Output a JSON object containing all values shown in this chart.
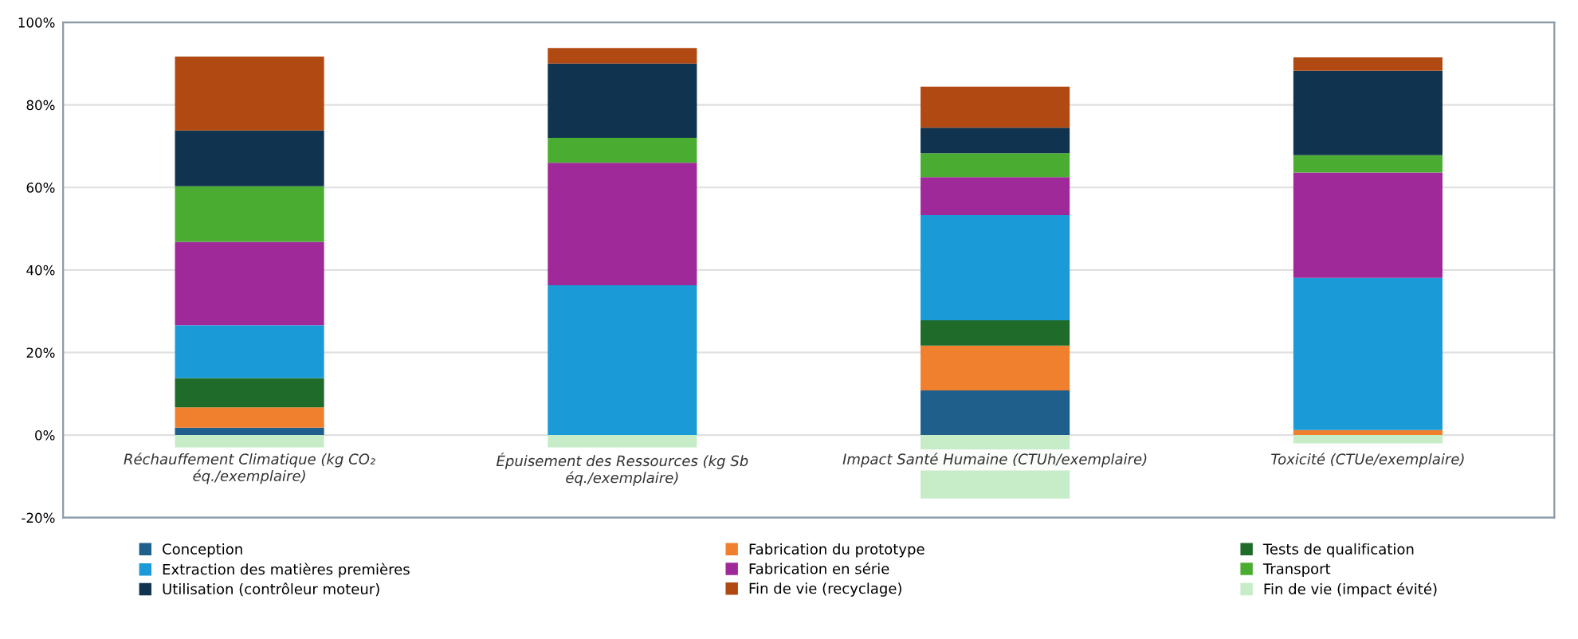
{
  "chart_data": {
    "type": "bar",
    "stacked": true,
    "categories": [
      "Réchauffement Climatique (kg CO₂\néq./exemplaire)",
      "Épuisement des Ressources (kg Sb\néq./exemplaire)",
      "Impact Santé Humaine (CTUh/exemplaire)",
      "Toxicité (CTUe/exemplaire)"
    ],
    "series": [
      {
        "name": "Conception",
        "color": "#1f5f8b",
        "values": [
          1.8,
          0,
          10.8,
          0
        ]
      },
      {
        "name": "Fabrication du prototype",
        "color": "#f07f2e",
        "values": [
          4.9,
          0,
          10.9,
          1.2
        ]
      },
      {
        "name": "Tests de qualification",
        "color": "#1e6b2a",
        "values": [
          7.1,
          0,
          6.1,
          0
        ]
      },
      {
        "name": "Extraction des matières premières",
        "color": "#1a9bd7",
        "values": [
          12.8,
          36.3,
          25.5,
          36.9
        ]
      },
      {
        "name": "Fabrication en série",
        "color": "#a0299a",
        "values": [
          20.2,
          29.7,
          9.2,
          25.5
        ]
      },
      {
        "name": "Transport",
        "color": "#4aad32",
        "values": [
          13.5,
          6,
          5.8,
          4.2
        ]
      },
      {
        "name": "Utilisation (contrôleur moteur)",
        "color": "#10344f",
        "values": [
          13.5,
          18,
          6.2,
          20.5
        ]
      },
      {
        "name": "Fin de vie (recyclage)",
        "color": "#b04a12",
        "values": [
          17.9,
          3.8,
          9.9,
          3.2
        ]
      },
      {
        "name": "Fin de vie (impact évité)",
        "color": "#c6ecc8",
        "values": [
          -3,
          -3,
          -15.4,
          -2
        ]
      }
    ],
    "ylim": [
      -20,
      100
    ],
    "yticks": [
      {
        "value": -20,
        "label": "-20%"
      },
      {
        "value": 0,
        "label": "0%"
      },
      {
        "value": 20,
        "label": "20%"
      },
      {
        "value": 40,
        "label": "40%"
      },
      {
        "value": 60,
        "label": "60%"
      },
      {
        "value": 80,
        "label": "80%"
      },
      {
        "value": 100,
        "label": "100%"
      }
    ],
    "grid": "y",
    "legend": "bottom"
  }
}
